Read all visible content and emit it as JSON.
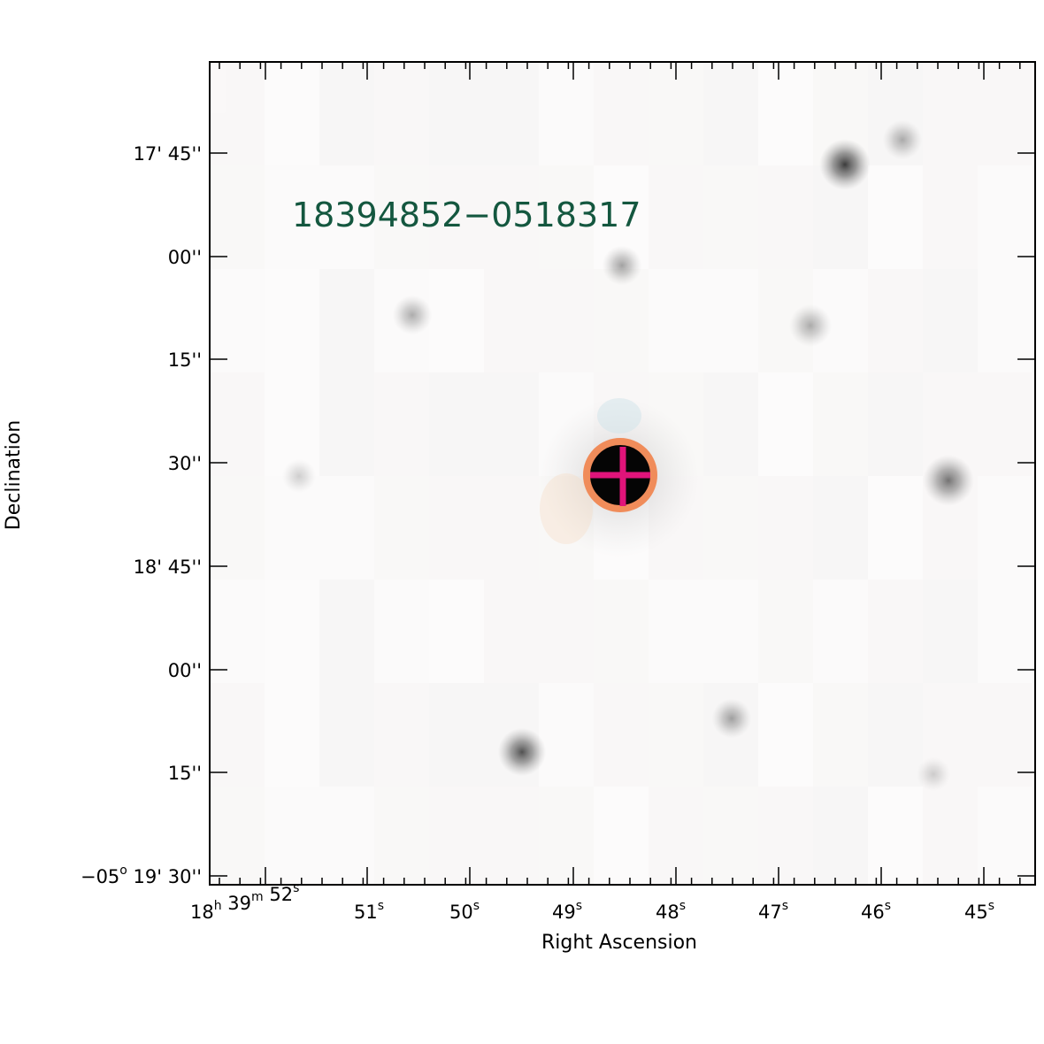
{
  "source_label": "18394852−0518317",
  "axes": {
    "xlabel": "Right Ascension",
    "ylabel": "Declination"
  },
  "ra_ticks": [
    {
      "main": "18",
      "sup": "h",
      "main2": " 39",
      "sup2": "m",
      "main3": " 52",
      "sup3": "s"
    },
    {
      "main": "51",
      "sup": "s"
    },
    {
      "main": "50",
      "sup": "s"
    },
    {
      "main": "49",
      "sup": "s"
    },
    {
      "main": "48",
      "sup": "s"
    },
    {
      "main": "47",
      "sup": "s"
    },
    {
      "main": "46",
      "sup": "s"
    },
    {
      "main": "45",
      "sup": "s"
    }
  ],
  "dec_ticks": [
    {
      "label": "17' 45''"
    },
    {
      "label": "00''"
    },
    {
      "label": "15''"
    },
    {
      "label": "30''"
    },
    {
      "label": "18' 45''"
    },
    {
      "label": "00''"
    },
    {
      "label": "15''"
    },
    {
      "prefix": "−05",
      "sup": "o",
      "label": " 19' 30''"
    }
  ],
  "target": {
    "circle_color": "#f08c5a",
    "cross_color": "#e0147a"
  },
  "stars": [
    {
      "name": "star-1",
      "intensity": 0.85
    },
    {
      "name": "star-2",
      "intensity": 0.35
    },
    {
      "name": "star-3",
      "intensity": 0.4
    },
    {
      "name": "star-4",
      "intensity": 0.35
    },
    {
      "name": "star-5",
      "intensity": 0.35
    },
    {
      "name": "star-6",
      "intensity": 0.6
    },
    {
      "name": "star-7",
      "intensity": 0.4
    },
    {
      "name": "star-8",
      "intensity": 0.75
    },
    {
      "name": "star-9",
      "intensity": 0.2
    },
    {
      "name": "star-10",
      "intensity": 0.2
    }
  ]
}
